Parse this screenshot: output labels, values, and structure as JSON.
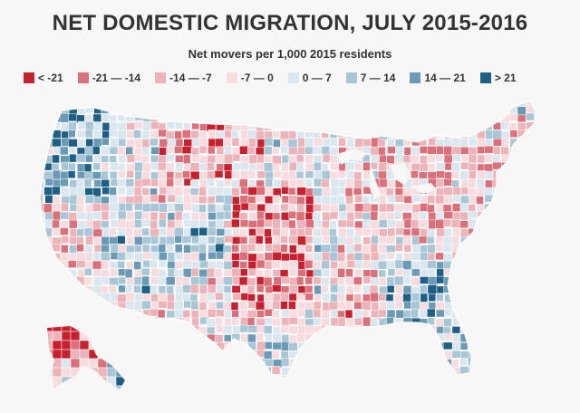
{
  "title": "NET DOMESTIC MIGRATION, JULY 2015-2016",
  "subtitle": "Net movers per 1,000 2015 residents",
  "legend": [
    {
      "label": "< -21",
      "color": "#c7202f"
    },
    {
      "label": "-21 — -14",
      "color": "#d9707a"
    },
    {
      "label": "-14 — -7",
      "color": "#ecb3b8"
    },
    {
      "label": "-7 — 0",
      "color": "#f6dcdf"
    },
    {
      "label": "0 — 7",
      "color": "#dbe7ee"
    },
    {
      "label": "7 — 14",
      "color": "#a9c6d6"
    },
    {
      "label": "14 — 21",
      "color": "#6b9ab6"
    },
    {
      "label": "> 21",
      "color": "#1f5f86"
    }
  ],
  "colors": {
    "background": "#f7f7f7",
    "border": "#ffffff"
  }
}
